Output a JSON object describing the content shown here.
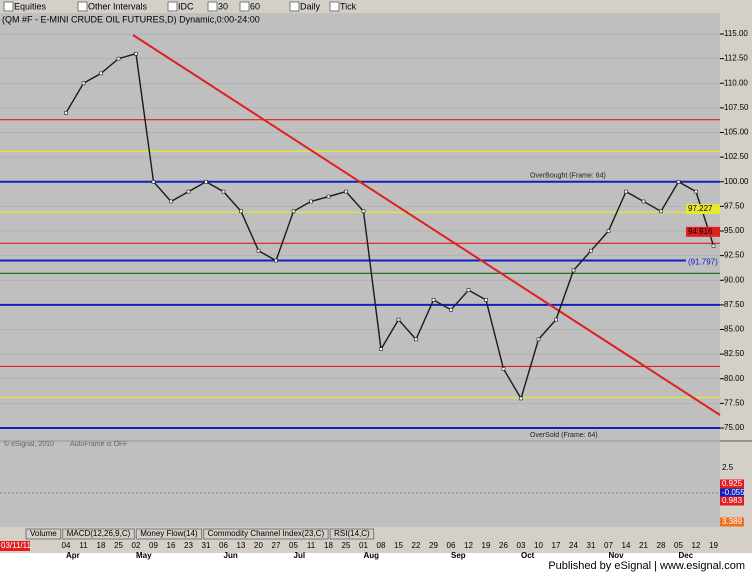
{
  "toolbar": {
    "items": [
      "Equities",
      "Other Intervals",
      "IDC",
      "30",
      "60",
      "Daily",
      "Tick"
    ]
  },
  "chart_data": {
    "type": "line",
    "title": "(QM #F - E-MINI CRUDE OIL FUTURES,D) Dynamic,0:00-24:00",
    "start_date": "03/11/11",
    "x": [
      "04",
      "11",
      "18",
      "25",
      "02",
      "09",
      "16",
      "23",
      "31",
      "06",
      "13",
      "20",
      "27",
      "05",
      "11",
      "18",
      "25",
      "01",
      "08",
      "15",
      "22",
      "29",
      "06",
      "12",
      "19",
      "26",
      "03",
      "10",
      "17",
      "24",
      "31",
      "07",
      "14",
      "21",
      "28",
      "05",
      "12",
      "19"
    ],
    "months": [
      "Apr",
      "May",
      "Jun",
      "Jul",
      "Aug",
      "Sep",
      "Oct",
      "Nov",
      "Dec"
    ],
    "values": [
      107,
      110,
      111,
      112.5,
      113,
      100,
      98,
      99,
      100,
      99,
      97,
      93,
      92,
      97,
      98,
      98.5,
      99,
      97,
      83,
      86,
      84,
      88,
      87,
      89,
      88,
      81,
      78,
      84,
      86,
      91,
      93,
      95,
      99,
      98,
      97,
      100,
      99,
      93.5
    ],
    "color": "#1a1a1a",
    "ylim": [
      73.5,
      116.3
    ],
    "yticks": [
      {
        "value": 75,
        "label": "75.00"
      },
      {
        "value": 77.5,
        "label": "77.50"
      },
      {
        "value": 80,
        "label": "80.00"
      },
      {
        "value": 82.5,
        "label": "82.50"
      },
      {
        "value": 85,
        "label": "85.00"
      },
      {
        "value": 87.5,
        "label": "87.50"
      },
      {
        "value": 90,
        "label": "90.00"
      },
      {
        "value": 92.5,
        "label": "92.50"
      },
      {
        "value": 95,
        "label": "95.00"
      },
      {
        "value": 97.5,
        "label": "97.50"
      },
      {
        "value": 100,
        "label": "100.00"
      },
      {
        "value": 102.5,
        "label": "102.50"
      },
      {
        "value": 105,
        "label": "105.00"
      },
      {
        "value": 107.5,
        "label": "107.50"
      },
      {
        "value": 110,
        "label": "110.00"
      },
      {
        "value": 112.5,
        "label": "112.50"
      },
      {
        "value": 115,
        "label": "115.00"
      }
    ],
    "grid": true,
    "levels": [
      {
        "value": 106.3,
        "color": "#e02020"
      },
      {
        "value": 103.1,
        "color": "#e8e830"
      },
      {
        "value": 100,
        "color": "#1020c0"
      },
      {
        "value": 96.9,
        "color": "#e8e830"
      },
      {
        "value": 93.75,
        "color": "#e02020"
      },
      {
        "value": 92,
        "color": "#1020c0"
      },
      {
        "value": 90.7,
        "color": "#207030"
      },
      {
        "value": 87.5,
        "color": "#1020c0"
      },
      {
        "value": 81.25,
        "color": "#e02020"
      },
      {
        "value": 78.1,
        "color": "#e8e830"
      },
      {
        "value": 75,
        "color": "#1020c0"
      }
    ],
    "annotations": [
      "OverBought (Frame: 64)",
      "OverSold (Frame: 64)",
      "AutoFrame is OFF",
      "© eSignal, 2010"
    ],
    "price_labels": [
      {
        "value": 97.227,
        "label": "97.227",
        "color": "#e8e830"
      },
      {
        "value": 94.916,
        "label": "94.916",
        "color": "#e02020"
      },
      {
        "value": 91.797,
        "label": "(91.797)",
        "color": "#1020c0"
      }
    ]
  },
  "macd": {
    "labels": [
      {
        "text": "2.5",
        "color": "#000000"
      },
      {
        "text": "0.925",
        "color": "#e02020"
      },
      {
        "text": "-0.055",
        "color": "#1020c0"
      },
      {
        "text": "0.983",
        "color": "#e02020"
      },
      {
        "text": "3.389",
        "color": "#f07020"
      }
    ]
  },
  "tabs": [
    "Volume",
    "MACD(12,26,9,C)",
    "Money Flow(14)",
    "Commodity Channel Index(23,C)",
    "RSI(14,C)"
  ],
  "footer": "Published by eSignal | www.esignal.com"
}
